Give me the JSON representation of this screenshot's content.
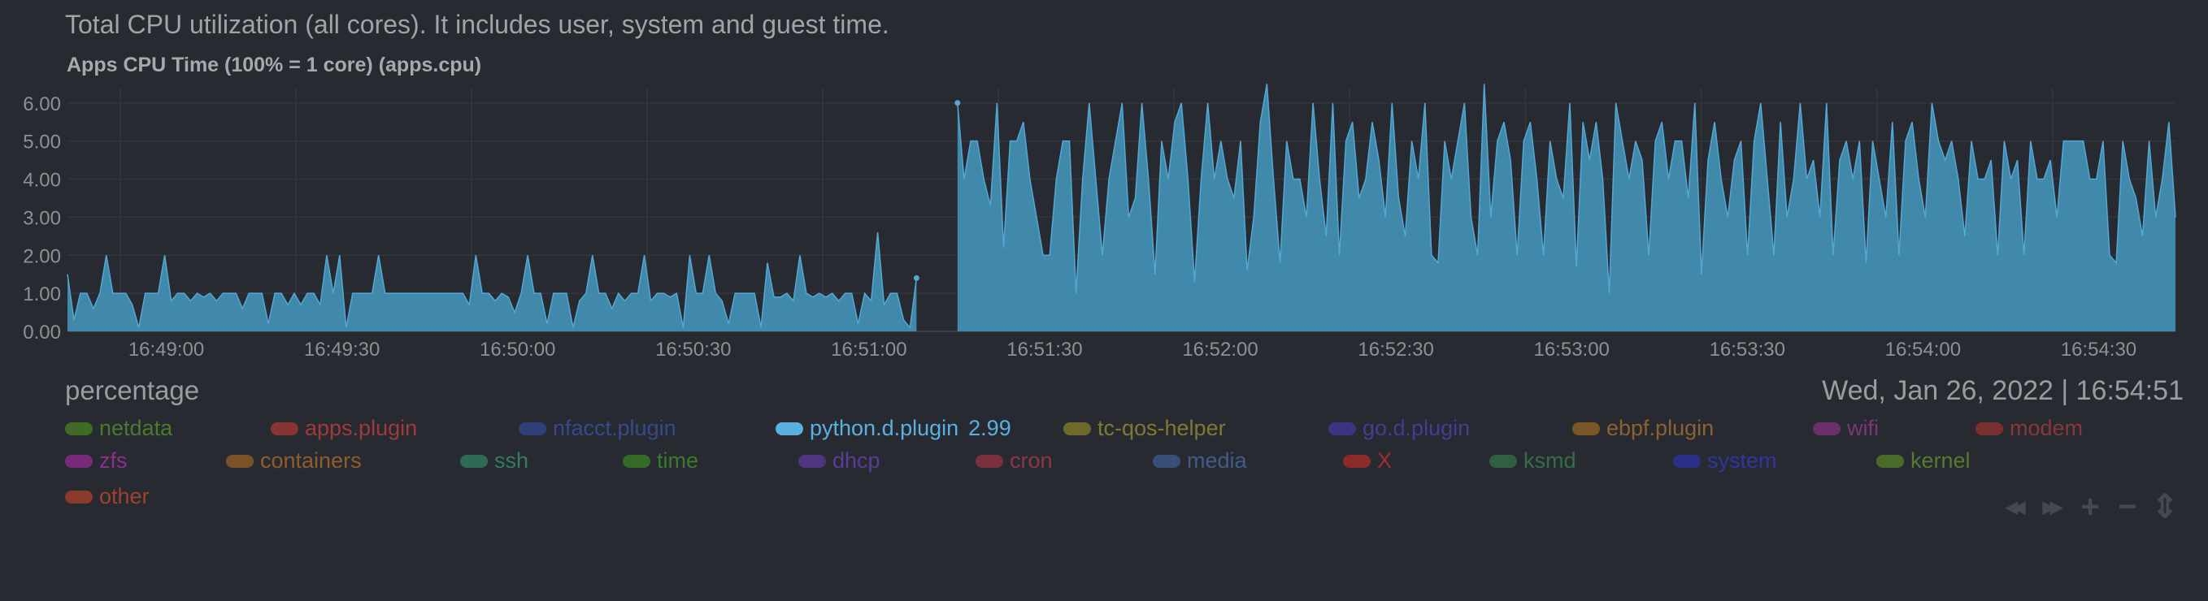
{
  "description": "Total CPU utilization (all cores). It includes user, system and guest time.",
  "chart_title": "Apps CPU Time (100% = 1 core) (apps.cpu)",
  "units": "percentage",
  "datetime": "Wed, Jan 26, 2022 | 16:54:51",
  "colors": {
    "background": "#272a30",
    "area_fill": "#4089aa",
    "area_stroke": "#55a7d3",
    "grid": "#33363d",
    "axis_text": "#8e9094",
    "selected": "#5ab0e0"
  },
  "chart_data": {
    "type": "area",
    "title": "Apps CPU Time (100% = 1 core) (apps.cpu)",
    "ylabel": "percentage",
    "ylim": [
      0,
      6.4
    ],
    "grid": true,
    "y_ticks": [
      "0.00",
      "1.00",
      "2.00",
      "3.00",
      "4.00",
      "5.00",
      "6.00"
    ],
    "x_ticks": [
      "16:49:00",
      "16:49:30",
      "16:50:00",
      "16:50:30",
      "16:51:00",
      "16:51:30",
      "16:52:00",
      "16:52:30",
      "16:53:00",
      "16:53:30",
      "16:54:00",
      "16:54:30"
    ],
    "x_start": "16:48:51",
    "x_end": "16:54:51",
    "gap": [
      "16:51:16",
      "16:51:23"
    ],
    "series": [
      {
        "name": "python.d.plugin",
        "current": "2.99",
        "values_before_gap": [
          1.5,
          0.3,
          1.0,
          1.0,
          0.6,
          1.0,
          2.0,
          1.0,
          1.0,
          1.0,
          0.7,
          0.1,
          1.0,
          1.0,
          1.0,
          2.0,
          0.8,
          1.0,
          1.0,
          0.8,
          1.0,
          0.9,
          1.0,
          0.8,
          1.0,
          1.0,
          1.0,
          0.6,
          1.0,
          1.0,
          1.0,
          0.2,
          1.0,
          1.0,
          0.7,
          1.0,
          0.7,
          1.0,
          1.0,
          0.7,
          2.0,
          1.0,
          2.0,
          0.1,
          1.0,
          1.0,
          1.0,
          1.0,
          2.0,
          1.0,
          1.0,
          1.0,
          1.0,
          1.0,
          1.0,
          1.0,
          1.0,
          1.0,
          1.0,
          1.0,
          1.0,
          1.0,
          0.7,
          2.0,
          1.0,
          1.0,
          0.8,
          1.0,
          0.9,
          0.5,
          1.0,
          2.0,
          1.0,
          1.0,
          0.2,
          1.0,
          1.0,
          1.0,
          0.1,
          0.8,
          1.0,
          2.0,
          1.0,
          1.0,
          0.6,
          1.0,
          0.8,
          1.0,
          1.0,
          2.0,
          0.8,
          1.0,
          1.0,
          0.9,
          1.0,
          0.1,
          2.0,
          1.0,
          1.0,
          2.0,
          1.0,
          0.8,
          0.2,
          1.0,
          1.0,
          1.0,
          1.0,
          0.1,
          1.8,
          0.9,
          0.9,
          1.0,
          0.8,
          2.0,
          1.0,
          0.9,
          1.0,
          0.9,
          1.0,
          0.8,
          1.0,
          1.0,
          0.2,
          1.0,
          0.8,
          2.6,
          0.7,
          1.0,
          1.0,
          0.3,
          0.1,
          1.4
        ],
        "values_after_gap": [
          6.0,
          4.0,
          5.0,
          5.0,
          4.0,
          3.3,
          6.0,
          2.2,
          5.0,
          5.0,
          5.5,
          4.0,
          3.0,
          2.0,
          2.0,
          4.0,
          5.0,
          5.0,
          1.0,
          4.0,
          6.0,
          4.0,
          2.0,
          4.0,
          5.0,
          6.0,
          3.0,
          3.5,
          6.0,
          4.0,
          1.5,
          5.0,
          4.0,
          5.5,
          6.0,
          4.0,
          1.3,
          4.0,
          6.0,
          4.0,
          5.0,
          4.0,
          3.5,
          5.0,
          1.6,
          3.0,
          5.5,
          6.5,
          4.0,
          1.8,
          5.0,
          4.0,
          4.0,
          3.0,
          6.0,
          4.0,
          2.5,
          6.0,
          2.0,
          5.0,
          5.5,
          3.5,
          4.0,
          5.5,
          4.5,
          3.0,
          6.0,
          3.5,
          2.5,
          5.0,
          4.0,
          6.0,
          2.0,
          1.8,
          5.0,
          4.0,
          5.0,
          6.0,
          3.0,
          2.0,
          6.5,
          3.0,
          5.0,
          5.5,
          4.5,
          2.0,
          5.0,
          5.5,
          4.0,
          2.0,
          5.0,
          4.0,
          3.5,
          6.0,
          1.7,
          5.5,
          4.5,
          5.5,
          4.0,
          1.0,
          6.0,
          5.0,
          4.0,
          5.0,
          4.5,
          2.0,
          5.0,
          5.5,
          4.0,
          5.0,
          5.0,
          3.5,
          6.0,
          1.5,
          4.5,
          5.5,
          4.0,
          3.0,
          4.5,
          5.0,
          2.0,
          5.0,
          6.0,
          4.0,
          2.0,
          5.5,
          3.0,
          4.0,
          6.0,
          4.0,
          4.5,
          3.0,
          6.0,
          2.0,
          4.5,
          5.0,
          4.0,
          5.0,
          1.8,
          5.0,
          4.0,
          3.0,
          5.5,
          2.0,
          5.0,
          5.5,
          4.0,
          3.0,
          6.0,
          5.0,
          4.5,
          5.0,
          4.0,
          2.5,
          5.0,
          4.0,
          4.0,
          4.5,
          2.0,
          5.0,
          4.0,
          4.5,
          2.0,
          5.0,
          4.0,
          4.0,
          4.5,
          3.0,
          5.0,
          5.0,
          5.0,
          5.0,
          4.0,
          4.0,
          5.0,
          2.0,
          1.8,
          5.0,
          4.0,
          3.5,
          2.5,
          5.0,
          3.0,
          4.0,
          5.5,
          3.0
        ]
      }
    ]
  },
  "legend": {
    "rows": [
      [
        {
          "name": "netdata",
          "color": "#3f6b26"
        },
        {
          "name": "apps.plugin",
          "color": "#8a3333"
        },
        {
          "name": "nfacct.plugin",
          "color": "#2f4078"
        },
        {
          "name": "python.d.plugin",
          "color": "#5ab0e0",
          "value": "2.99",
          "selected": true
        },
        {
          "name": "tc-qos-helper",
          "color": "#6f6a2a"
        },
        {
          "name": "go.d.plugin",
          "color": "#3a3580"
        },
        {
          "name": "ebpf.plugin",
          "color": "#7a5528"
        },
        {
          "name": "wifi",
          "color": "#6a2f6a"
        },
        {
          "name": "modem",
          "color": "#7a3030"
        }
      ],
      [
        {
          "name": "zfs",
          "color": "#7a2a7a"
        },
        {
          "name": "containers",
          "color": "#7a5228"
        },
        {
          "name": "ssh",
          "color": "#2f6a55"
        },
        {
          "name": "time",
          "color": "#346b26"
        },
        {
          "name": "dhcp",
          "color": "#4f3580"
        },
        {
          "name": "cron",
          "color": "#7a2f3f"
        },
        {
          "name": "media",
          "color": "#3a4f78"
        },
        {
          "name": "X",
          "color": "#8a2a2a"
        },
        {
          "name": "ksmd",
          "color": "#2f6040"
        },
        {
          "name": "system",
          "color": "#2a2f8a"
        },
        {
          "name": "kernel",
          "color": "#4a6a2a"
        }
      ],
      [
        {
          "name": "other",
          "color": "#8a3a2a"
        }
      ]
    ]
  },
  "controls": [
    {
      "icon": "rewind-icon",
      "glyph": "◀◀"
    },
    {
      "icon": "fast-forward-icon",
      "glyph": "▶▶"
    },
    {
      "icon": "zoom-in-icon",
      "glyph": "+"
    },
    {
      "icon": "zoom-out-icon",
      "glyph": "−"
    },
    {
      "icon": "resize-icon",
      "glyph": "⇕"
    }
  ]
}
